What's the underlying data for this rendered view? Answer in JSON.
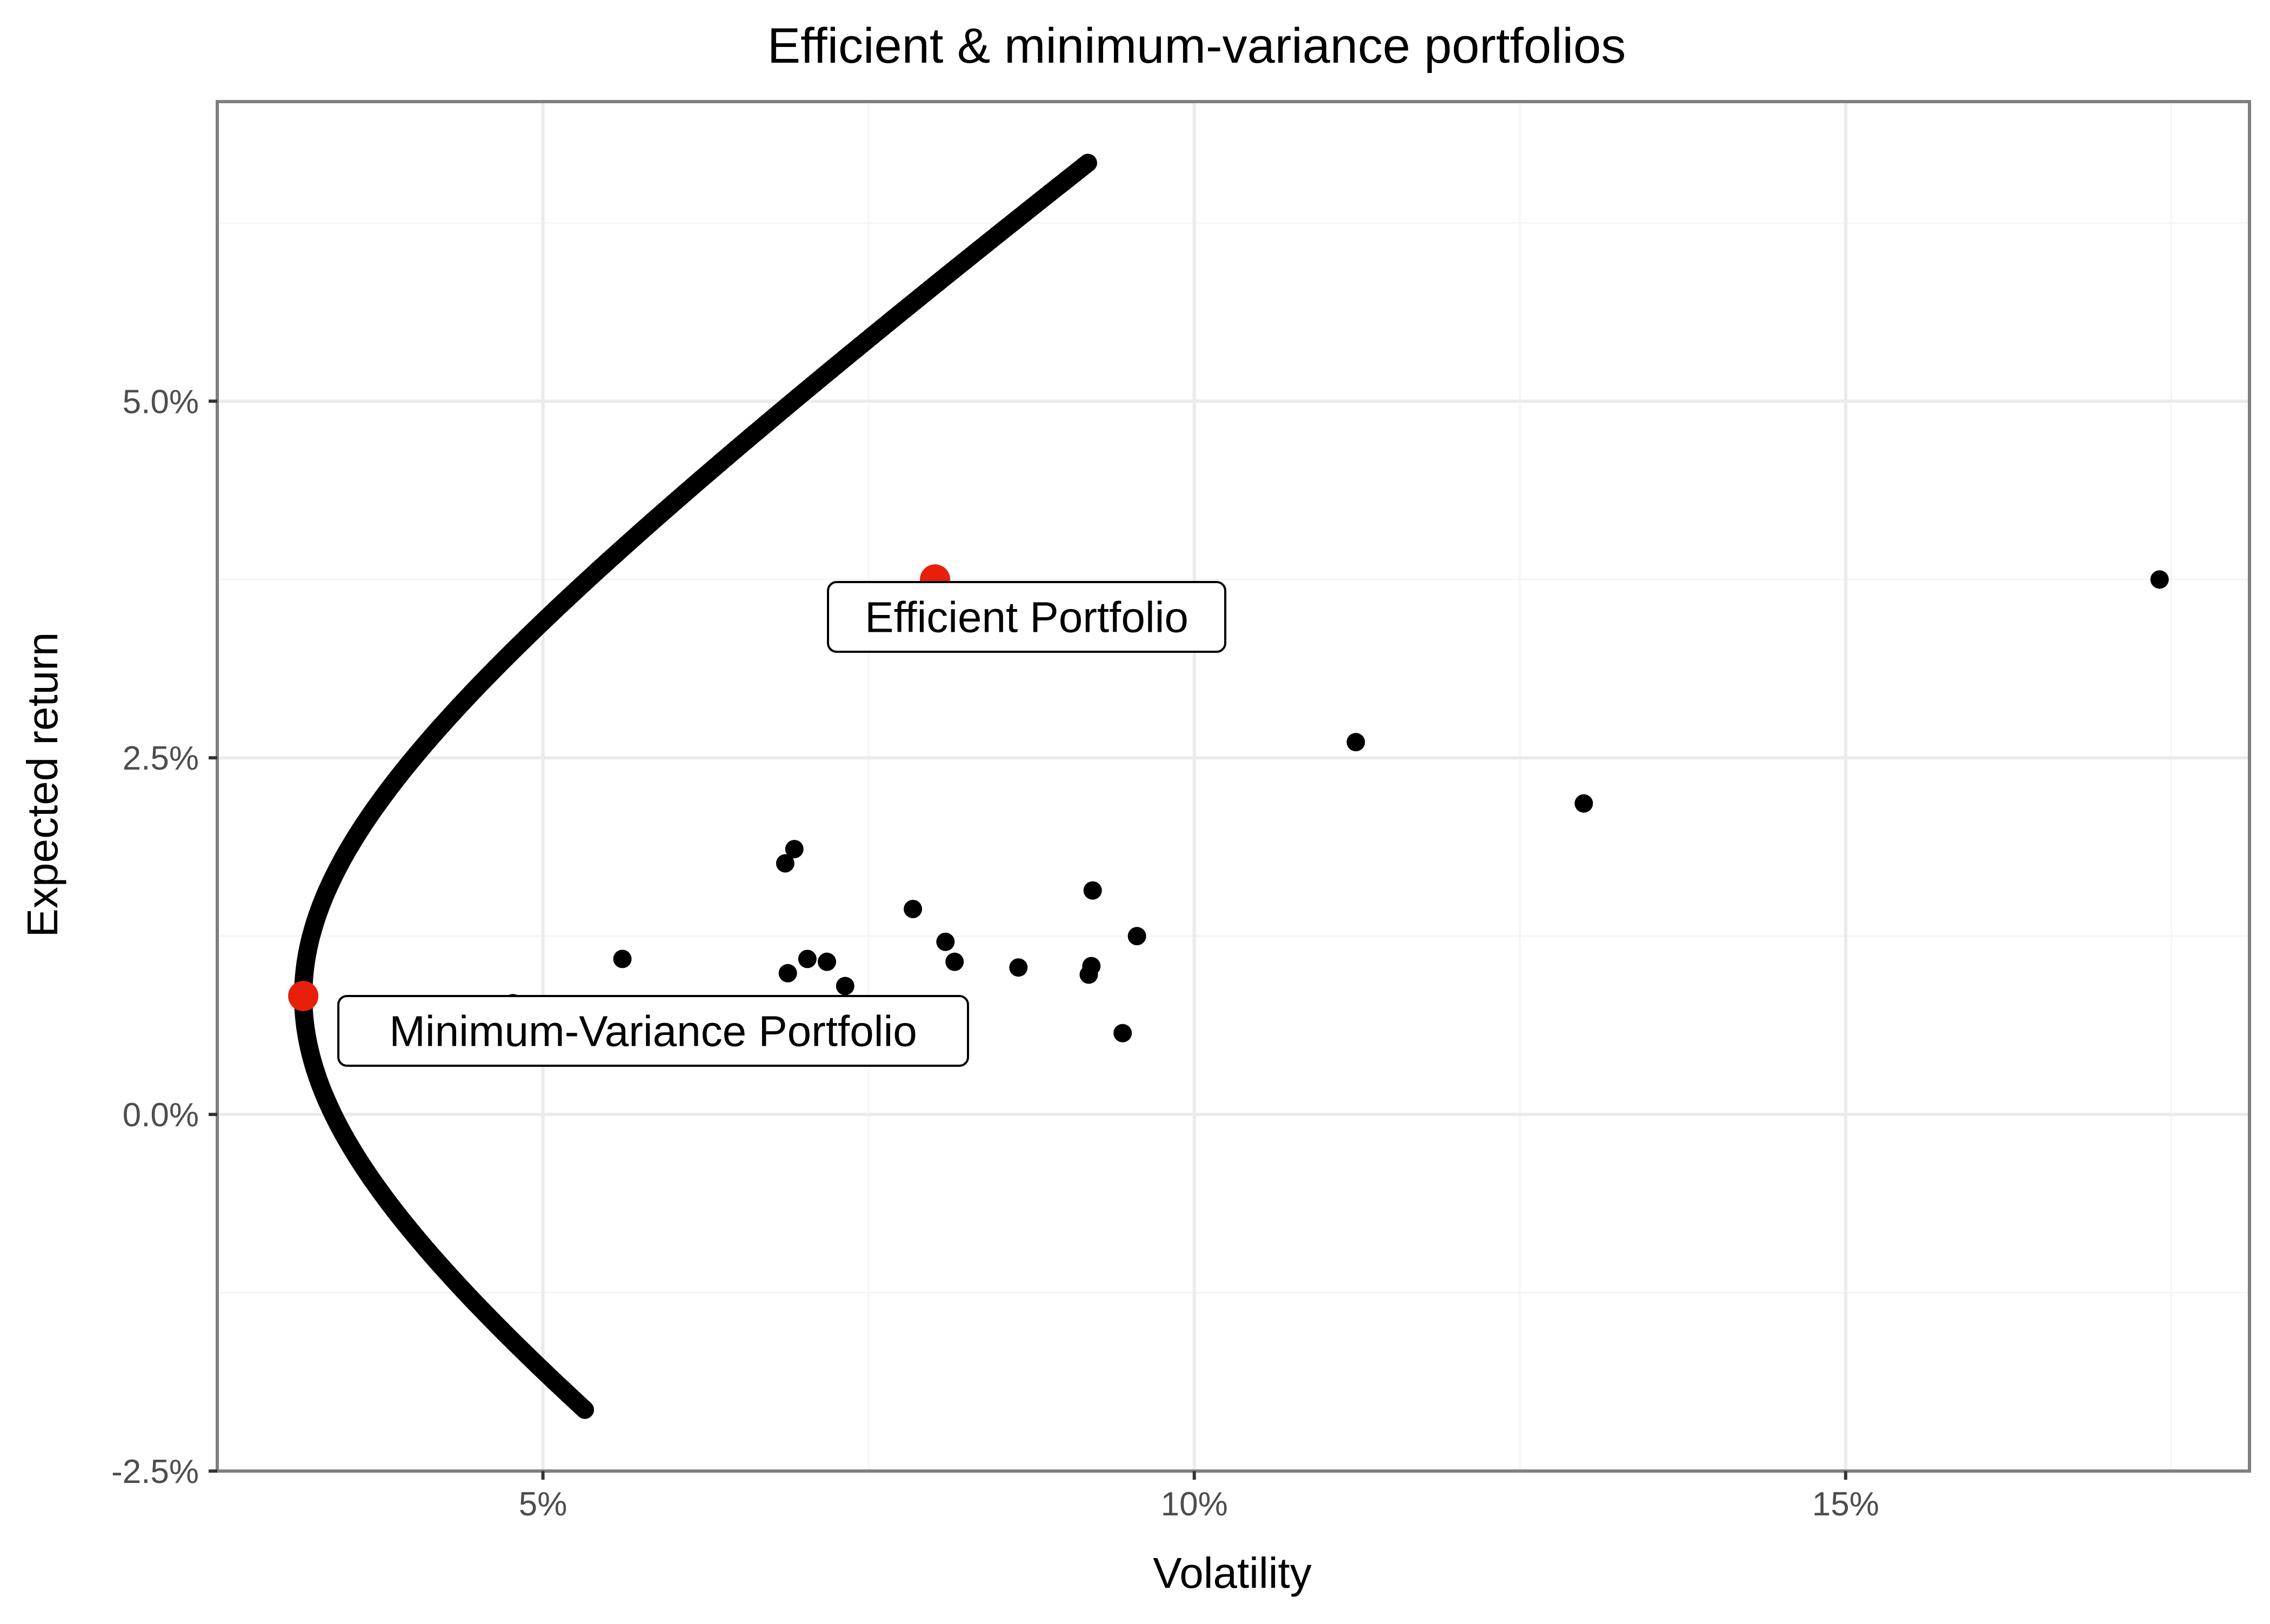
{
  "chart_data": {
    "type": "scatter",
    "title": "Efficient & minimum-variance portfolios",
    "xlabel": "Volatility",
    "ylabel": "Expected return",
    "xlim": [
      0.025,
      0.181
    ],
    "ylim": [
      -0.025,
      0.071
    ],
    "x_ticks": [
      {
        "value": 0.05,
        "label": "5%"
      },
      {
        "value": 0.1,
        "label": "10%"
      },
      {
        "value": 0.15,
        "label": "15%"
      }
    ],
    "y_ticks": [
      {
        "value": -0.025,
        "label": "-2.5%"
      },
      {
        "value": 0.0,
        "label": "0.0%"
      },
      {
        "value": 0.025,
        "label": "2.5%"
      },
      {
        "value": 0.05,
        "label": "5.0%"
      }
    ],
    "grid": true,
    "legend": "none",
    "frontier": {
      "min_variance": {
        "volatility": 0.0316,
        "return": 0.0083
      },
      "curve_x_coefficient": 2.18,
      "return_range": [
        -0.0207,
        0.0667
      ],
      "color": "#000000"
    },
    "assets": [
      {
        "volatility": 0.0477,
        "return": 0.0078
      },
      {
        "volatility": 0.0561,
        "return": 0.0109
      },
      {
        "volatility": 0.0686,
        "return": 0.0176
      },
      {
        "volatility": 0.0693,
        "return": 0.0186
      },
      {
        "volatility": 0.0688,
        "return": 0.0099
      },
      {
        "volatility": 0.0703,
        "return": 0.0109
      },
      {
        "volatility": 0.0718,
        "return": 0.0107
      },
      {
        "volatility": 0.0732,
        "return": 0.009
      },
      {
        "volatility": 0.0784,
        "return": 0.0144
      },
      {
        "volatility": 0.0809,
        "return": 0.0121
      },
      {
        "volatility": 0.0816,
        "return": 0.0107
      },
      {
        "volatility": 0.0865,
        "return": 0.0103
      },
      {
        "volatility": 0.0919,
        "return": 0.0098
      },
      {
        "volatility": 0.0921,
        "return": 0.0104
      },
      {
        "volatility": 0.0922,
        "return": 0.0157
      },
      {
        "volatility": 0.0945,
        "return": 0.0057
      },
      {
        "volatility": 0.0956,
        "return": 0.0125
      },
      {
        "volatility": 0.1124,
        "return": 0.0261
      },
      {
        "volatility": 0.1299,
        "return": 0.0218
      },
      {
        "volatility": 0.1741,
        "return": 0.0375
      }
    ],
    "highlighted": [
      {
        "name": "Efficient Portfolio",
        "volatility": 0.0801,
        "return": 0.0375,
        "color": "#e8200b"
      },
      {
        "name": "Minimum-Variance Portfolio",
        "volatility": 0.0316,
        "return": 0.0083,
        "color": "#e8200b"
      }
    ],
    "annotations": [
      "Efficient Portfolio",
      "Minimum-Variance Portfolio"
    ],
    "colors": {
      "panel_border": "#7f7f7f",
      "grid_major": "#ebebeb",
      "grid_minor": "#f5f5f5",
      "points": "#000000",
      "highlight": "#e8200b"
    }
  }
}
